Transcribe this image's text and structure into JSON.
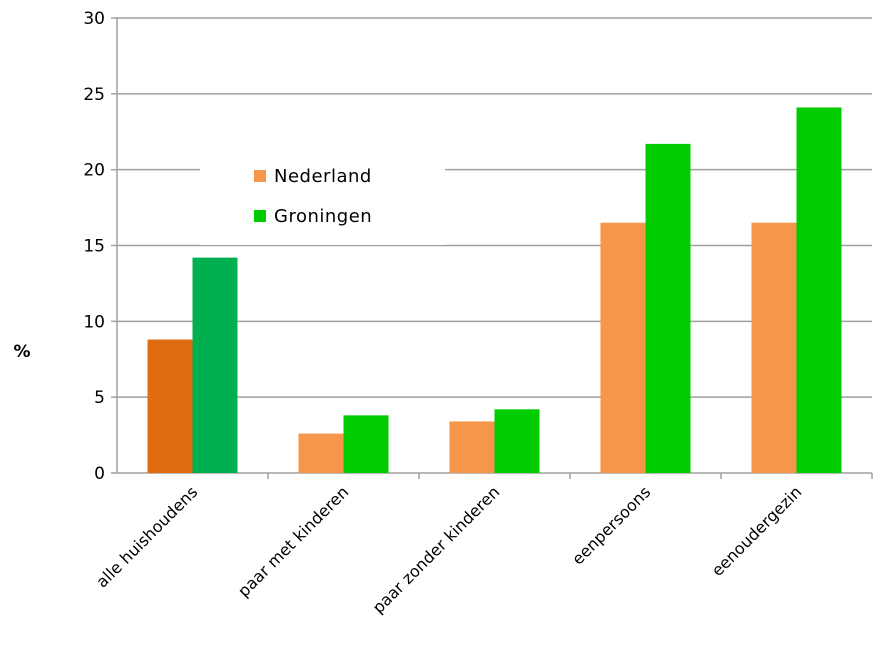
{
  "chart_data": {
    "type": "bar",
    "ylabel": "%",
    "ylim": [
      0,
      30
    ],
    "yticks": [
      0,
      5,
      10,
      15,
      20,
      25,
      30
    ],
    "grid": true,
    "legend_placement": "upper-left inside plot",
    "categories": [
      "alle huishoudens",
      "paar met kinderen",
      "paar zonder kinderen",
      "eenpersoons",
      "eenoudergezin"
    ],
    "series": [
      {
        "name": "Nederland",
        "color": "#f5964b",
        "highlight_colors": [
          "#e06b10",
          null,
          null,
          null,
          null
        ],
        "values": [
          8.8,
          2.6,
          3.4,
          16.5,
          16.5
        ]
      },
      {
        "name": "Groningen",
        "color": "#00cc00",
        "highlight_colors": [
          "#00b050",
          null,
          null,
          null,
          null
        ],
        "values": [
          14.2,
          3.8,
          4.2,
          21.7,
          24.1
        ]
      }
    ]
  }
}
